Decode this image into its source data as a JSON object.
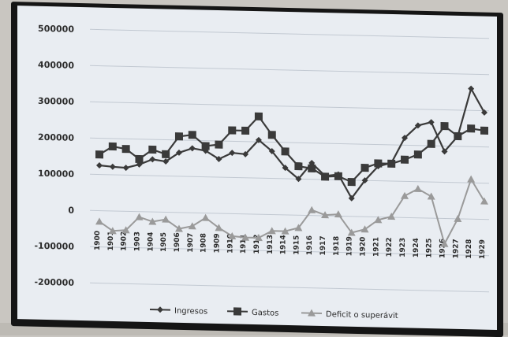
{
  "chart_data": {
    "type": "line",
    "title": "",
    "xlabel": "",
    "ylabel": "",
    "ylim": [
      -250000,
      520000
    ],
    "yticks": [
      500000,
      400000,
      300000,
      200000,
      100000,
      0,
      -100000,
      -200000
    ],
    "ytick_labels": [
      "500000",
      "400000",
      "300000",
      "200000",
      "100000",
      "0",
      "-100000",
      "-200000"
    ],
    "categories": [
      "1900",
      "1901",
      "1902",
      "1903",
      "1904",
      "1905",
      "1906",
      "1907",
      "1908",
      "1909",
      "1910",
      "1911",
      "1912",
      "1913",
      "1914",
      "1915",
      "1916",
      "1917",
      "1918",
      "1919",
      "1920",
      "1921",
      "1922",
      "1923",
      "1924",
      "1925",
      "1926",
      "1927",
      "1928",
      "1929"
    ],
    "grid": true,
    "legend_position": "bottom",
    "series": [
      {
        "name": "Ingresos",
        "marker": "diamond",
        "color": "#3a3a3a",
        "values": [
          125000,
          122000,
          120000,
          130000,
          145000,
          140000,
          165000,
          178000,
          172000,
          150000,
          168000,
          165000,
          205000,
          175000,
          130000,
          100000,
          145000,
          110000,
          115000,
          50000,
          100000,
          140000,
          150000,
          220000,
          255000,
          265000,
          185000,
          228000,
          360000,
          295000
        ]
      },
      {
        "name": "Gastos",
        "marker": "square",
        "color": "#3a3a3a",
        "values": [
          155000,
          178000,
          172000,
          145000,
          172000,
          160000,
          210000,
          215000,
          185000,
          190000,
          230000,
          230000,
          270000,
          220000,
          175000,
          135000,
          130000,
          108000,
          110000,
          95000,
          135000,
          148000,
          148000,
          160000,
          175000,
          205000,
          255000,
          228000,
          250000,
          245000
        ]
      },
      {
        "name": "Deficit o superávit",
        "marker": "triangle",
        "color": "#9a9a9a",
        "values": [
          -30000,
          -55000,
          -52000,
          -15000,
          -27000,
          -20000,
          -45000,
          -37000,
          -13000,
          -40000,
          -62000,
          -65000,
          -65000,
          -45000,
          -45000,
          -35000,
          15000,
          2000,
          5000,
          -45000,
          -35000,
          -8000,
          2000,
          60000,
          80000,
          60000,
          -70000,
          0,
          110000,
          50000
        ]
      }
    ]
  }
}
